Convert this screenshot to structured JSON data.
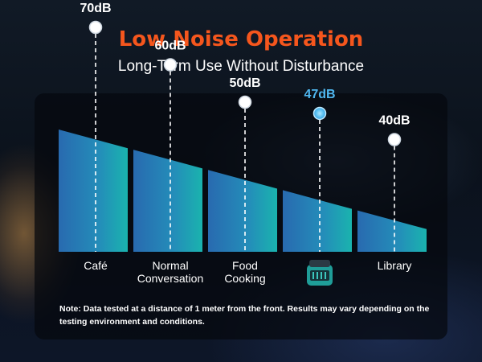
{
  "header": {
    "title": "Low Noise Operation",
    "subtitle": "Long-Term Use Without Disturbance"
  },
  "chart_data": {
    "type": "bar",
    "categories": [
      "Café",
      "Normal Conversation",
      "Food Cooking",
      "",
      "Library"
    ],
    "values": [
      70,
      60,
      50,
      47,
      40
    ],
    "value_labels": [
      "70dB",
      "60dB",
      "50dB",
      "47dB",
      "40dB"
    ],
    "highlight_index": 3,
    "highlight_icon": "product-icon",
    "unit": "dB",
    "title": "",
    "xlabel": "",
    "ylabel": "",
    "grid": false,
    "colors": {
      "bar_top": "#2f7fc4",
      "bar_bottom_end": "#1fb3b8",
      "highlight_label": "#4fb6ee",
      "label": "#ffffff"
    }
  },
  "footer": {
    "note": "Note: Data tested at a distance of 1 meter from the front. Results may vary depending on the testing environment and conditions."
  },
  "colors": {
    "title": "#f5561d",
    "panel": "#05080e"
  }
}
